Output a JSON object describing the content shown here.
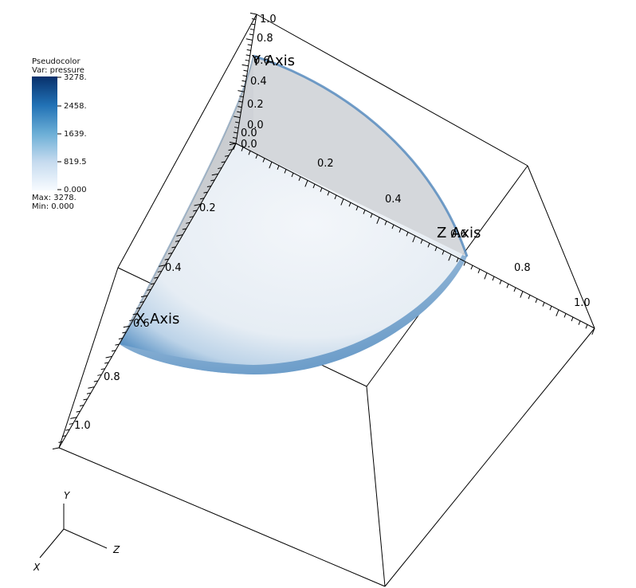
{
  "legend": {
    "title": "Pseudocolor",
    "var": "Var: pressure",
    "ticks": [
      "3278.",
      "2458.",
      "1639.",
      "819.5",
      "0.000"
    ],
    "max": "Max:  3278.",
    "min": "Min:  0.000"
  },
  "axes": {
    "x_title": "X Axis",
    "y_title": "Y Axis",
    "z_title": "Z Axis",
    "y_ticks": [
      "1.0",
      "0.8",
      "0.6",
      "0.4",
      "0.2",
      "0.0"
    ],
    "x_ticks": [
      "0.0",
      "0.2",
      "0.4",
      "0.6",
      "0.8",
      "1.0"
    ],
    "z_ticks": [
      "0.0",
      "0.2",
      "0.4",
      "0.6",
      "0.8",
      "1.0"
    ]
  },
  "triad": {
    "x": "X",
    "y": "Y",
    "z": "Z"
  },
  "colors": {
    "colormap_dark": "#08306b",
    "colormap_mid": "#4a90c2",
    "colormap_light": "#f7fbff",
    "surface_gray": "#c9ccd0",
    "box_line": "#000000"
  }
}
